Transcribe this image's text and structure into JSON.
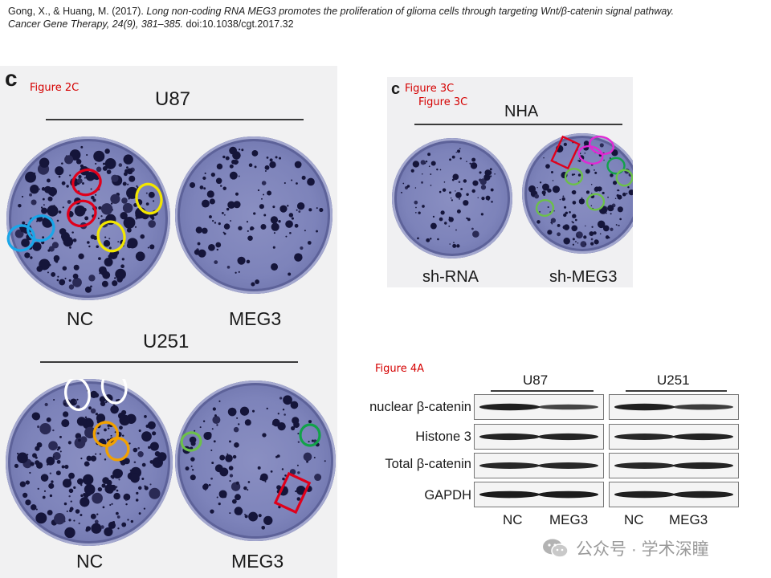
{
  "citation": {
    "authors": "Gong, X., & Huang, M. (2017). ",
    "title": "Long non-coding RNA MEG3 promotes the proliferation of glioma cells through targeting Wnt/β-catenin signal pathway.",
    "journal": "Cancer Gene Therapy, 24(9), 381–385.",
    "doi": " doi:10.1038/cgt.2017.32"
  },
  "figure2c": {
    "letter": "c",
    "label": "Figure 2C",
    "u87": {
      "title": "U87",
      "left": "NC",
      "right": "MEG3"
    },
    "u251": {
      "title": "U251",
      "left": "NC",
      "right": "MEG3"
    }
  },
  "figure3c": {
    "letter": "c",
    "label1": "Figure 3C",
    "label2": "Figure 3C",
    "title": "NHA",
    "left": "sh-RNA",
    "right": "sh-MEG3"
  },
  "figure4a": {
    "label": "Figure 4A",
    "cell_lines": [
      "U87",
      "U251"
    ],
    "rows": [
      "nuclear β-catenin",
      "Histone 3",
      "Total β-catenin",
      "GAPDH"
    ],
    "lanes": [
      "NC",
      "MEG3",
      "NC",
      "MEG3"
    ]
  },
  "watermark": {
    "text": "公众号 · 学术深瞳"
  },
  "colors": {
    "red": "#e0001b",
    "yellow": "#f2e600",
    "blue": "#1aa6e8",
    "white": "#ffffff",
    "orange": "#f2a100",
    "green": "#6cc04a",
    "magenta": "#e02ad4",
    "dark_green": "#12a24a"
  }
}
